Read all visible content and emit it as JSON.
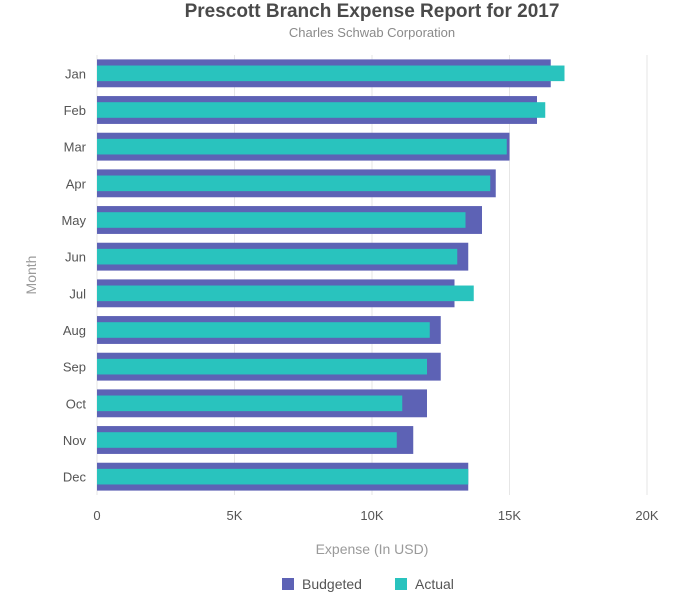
{
  "chart_data": {
    "type": "bar",
    "orientation": "horizontal",
    "title": "Prescott Branch Expense Report for 2017",
    "subtitle": "Charles Schwab Corporation",
    "xlabel": "Expense (In USD)",
    "ylabel": "Month",
    "categories": [
      "Jan",
      "Feb",
      "Mar",
      "Apr",
      "May",
      "Jun",
      "Jul",
      "Aug",
      "Sep",
      "Oct",
      "Nov",
      "Dec"
    ],
    "series": [
      {
        "name": "Budgeted",
        "color": "#5d62b5",
        "values": [
          16500,
          16000,
          15000,
          14500,
          14000,
          13500,
          13000,
          12500,
          12500,
          12000,
          11500,
          13500
        ]
      },
      {
        "name": "Actual",
        "color": "#29c3be",
        "values": [
          17000,
          16300,
          14900,
          14300,
          13400,
          13100,
          13700,
          12100,
          12000,
          11100,
          10900,
          13500
        ]
      }
    ],
    "xlim": [
      0,
      20000
    ],
    "xticks": [
      0,
      5000,
      10000,
      15000,
      20000
    ],
    "xtick_labels": [
      "0",
      "5K",
      "10K",
      "15K",
      "20K"
    ],
    "grid": true,
    "legend_position": "bottom"
  }
}
